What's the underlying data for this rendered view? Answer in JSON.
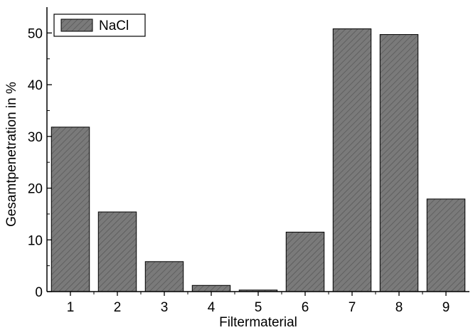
{
  "chart_data": {
    "type": "bar",
    "categories": [
      "1",
      "2",
      "3",
      "4",
      "5",
      "6",
      "7",
      "8",
      "9"
    ],
    "series": [
      {
        "name": "NaCl",
        "values": [
          31.8,
          15.4,
          5.8,
          1.2,
          0.3,
          11.5,
          50.8,
          49.7,
          17.9
        ]
      }
    ],
    "xlabel": "Filtermaterial",
    "ylabel": "Gesamtpenetration in %",
    "ylim": [
      0,
      55
    ],
    "yticks": [
      0,
      10,
      20,
      30,
      40,
      50
    ],
    "grid": false,
    "legend_position": "top-left",
    "colors": {
      "bar_fill": "#7a7a7a",
      "hatch": "#555555",
      "axis": "#000000"
    }
  }
}
